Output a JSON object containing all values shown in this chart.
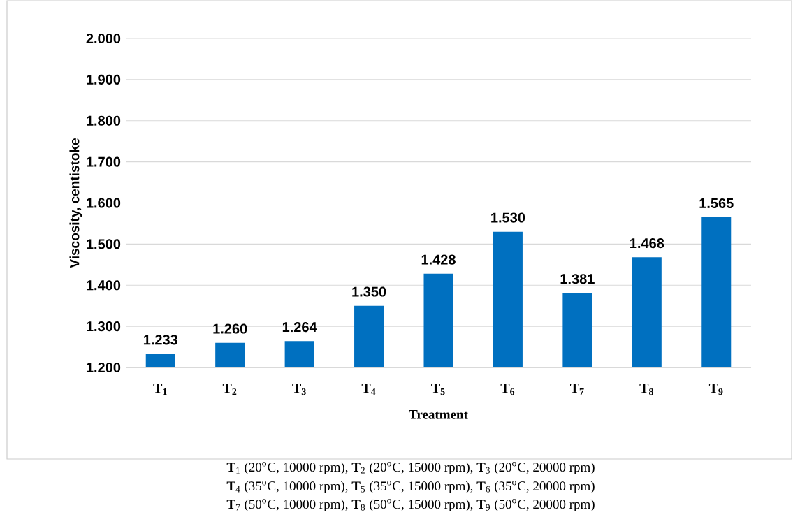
{
  "chart_data": {
    "type": "bar",
    "xlabel": "Treatment",
    "ylabel": "Viscosity, centistoke",
    "categories": [
      "T$_{1}$",
      "T$_{2}$",
      "T$_{3}$",
      "T$_{4}$",
      "T$_{5}$",
      "T$_{6}$",
      "T$_{7}$",
      "T$_{8}$",
      "T$_{9}$"
    ],
    "values": [
      1.233,
      1.26,
      1.264,
      1.35,
      1.428,
      1.53,
      1.381,
      1.468,
      1.565
    ],
    "value_labels": [
      "1.233",
      "1.260",
      "1.264",
      "1.350",
      "1.428",
      "1.530",
      "1.381",
      "1.468",
      "1.565"
    ],
    "color": "#0070c0",
    "ylim": [
      1.2,
      2.0
    ],
    "yticks": [
      {
        "value": 1.2,
        "label": "1.200"
      },
      {
        "value": 1.3,
        "label": "1.300"
      },
      {
        "value": 1.4,
        "label": "1.400"
      },
      {
        "value": 1.5,
        "label": "1.500"
      },
      {
        "value": 1.6,
        "label": "1.600"
      },
      {
        "value": 1.7,
        "label": "1.700"
      },
      {
        "value": 1.8,
        "label": "1.800"
      },
      {
        "value": 1.9,
        "label": "1.900"
      },
      {
        "value": 2.0,
        "label": "2.000"
      }
    ],
    "grid": "y",
    "annotations": [
      "**T**$_{1}$ (20$^{o}$C, 10000 rpm), **T**$_{2}$ (20$^{o}$C, 15000 rpm), **T**$_{3}$ (20$^{o}$C, 20000 rpm)",
      "**T**$_{4}$ (35$^{o}$C, 10000 rpm), **T**$_{5}$ (35$^{o}$C, 15000 rpm), **T**$_{6}$ (35$^{o}$C, 20000 rpm)",
      "**T**$_{7}$ (50$^{o}$C, 10000 rpm), **T**$_{8}$ (50$^{o}$C, 15000 rpm), **T**$_{9}$ (50$^{o}$C, 20000 rpm)"
    ]
  }
}
